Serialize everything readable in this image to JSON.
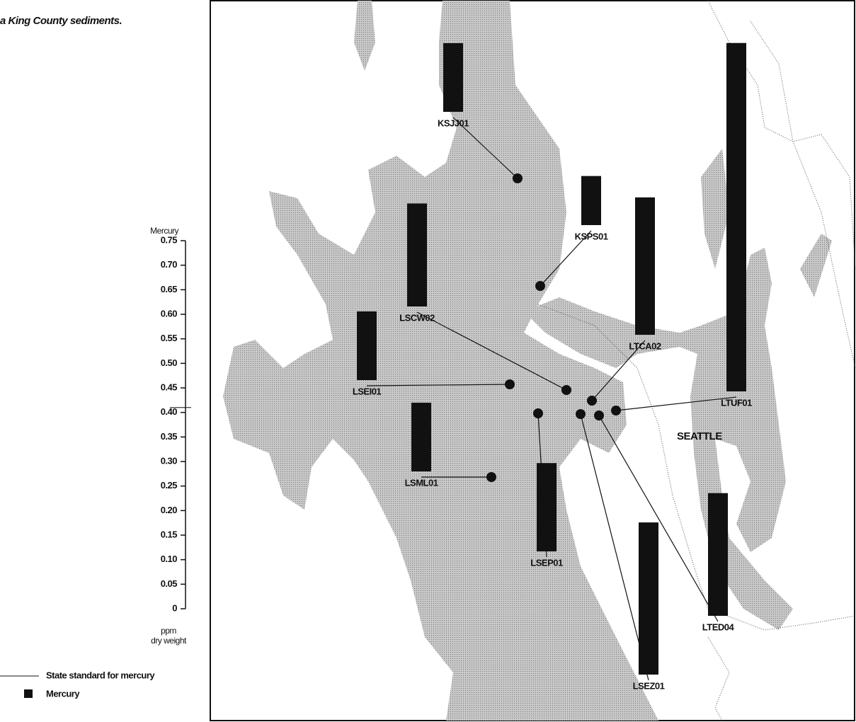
{
  "chart_data": {
    "type": "bar",
    "title": "a King County sediments.",
    "y_label": "Mercury",
    "unit_label": [
      "ppm",
      "dry weight"
    ],
    "place_label": "SEATTLE",
    "categories": [
      "KSJJ01",
      "KSPS01",
      "LSCW02",
      "LSEI01",
      "LTCA02",
      "LTUF01",
      "LSML01",
      "LSEP01",
      "LSEZ01",
      "LTED04"
    ],
    "series": [
      {
        "name": "Mercury",
        "color": "#111111",
        "values": [
          0.14,
          0.1,
          0.21,
          0.14,
          0.28,
          0.71,
          0.14,
          0.18,
          0.31,
          0.25
        ]
      }
    ],
    "reference_line": {
      "name": "State standard for mercury",
      "value": 0.41
    },
    "ylim": [
      0,
      0.75
    ],
    "yticks": [
      0,
      0.05,
      {
        "value": 0.1,
        "label": "0.10"
      },
      0.15,
      {
        "value": 0.2,
        "label": "0.20"
      },
      0.25,
      {
        "value": 0.3,
        "label": "0.30"
      },
      0.35,
      {
        "value": 0.4,
        "label": "0.40"
      },
      0.45,
      {
        "value": 0.5,
        "label": "0.50"
      },
      0.55,
      {
        "value": 0.6,
        "label": "0.60"
      },
      0.65,
      {
        "value": 0.7,
        "label": "0.70"
      },
      0.75
    ]
  }
}
